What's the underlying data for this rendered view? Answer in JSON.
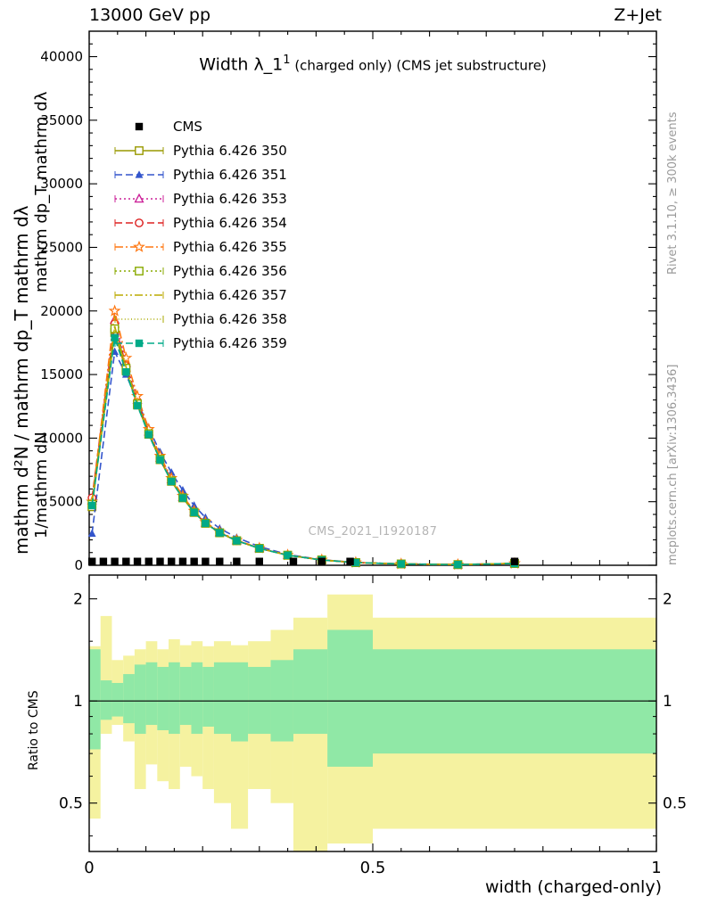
{
  "header": {
    "left": "13000 GeV pp",
    "right": "Z+Jet"
  },
  "side_labels": {
    "rivet": "Rivet 3.1.10, ≥ 300k events",
    "mcplots": "mcplots.cern.ch [arXiv:1306.3436]",
    "ylabel_parts": [
      "mathrm d²N / mathrm dp_T mathrm dλ",
      "mathrm dp_T mathrm dλ",
      "1/mathrm dN"
    ],
    "ratio_ylabel": "Ratio to CMS"
  },
  "title": {
    "main": "Width λ_1",
    "sup": "1",
    "rest": " (charged only) (CMS jet substructure)"
  },
  "watermark": "CMS_2021_I1920187",
  "xlabel": "width (charged-only)",
  "chart_data": {
    "type": "line",
    "title": "Width λ_1^1 (charged only) (CMS jet substructure)",
    "xlabel": "width (charged-only)",
    "x_range": [
      0,
      1
    ],
    "y_range": [
      0,
      42000
    ],
    "y_ticks": [
      0,
      5000,
      10000,
      15000,
      20000,
      25000,
      30000,
      35000,
      40000
    ],
    "x_ticks": [
      0,
      0.5,
      1
    ],
    "x": [
      0.005,
      0.045,
      0.065,
      0.085,
      0.105,
      0.125,
      0.145,
      0.165,
      0.185,
      0.205,
      0.23,
      0.26,
      0.3,
      0.35,
      0.41,
      0.47,
      0.55,
      0.65,
      0.75
    ],
    "cms": {
      "name": "CMS",
      "color": "#000000",
      "marker": "square-filled",
      "line": "none",
      "x": [
        0.005,
        0.025,
        0.045,
        0.065,
        0.085,
        0.105,
        0.125,
        0.145,
        0.165,
        0.185,
        0.205,
        0.23,
        0.26,
        0.3,
        0.36,
        0.41,
        0.46,
        0.75
      ],
      "values": [
        300,
        300,
        300,
        300,
        300,
        300,
        300,
        300,
        300,
        300,
        300,
        300,
        300,
        300,
        300,
        300,
        300,
        300
      ]
    },
    "series": [
      {
        "name": "Pythia 6.426 350",
        "color": "#999900",
        "marker": "square-open",
        "line": "solid",
        "values": [
          4600,
          18300,
          15300,
          12600,
          10300,
          8300,
          6600,
          5300,
          4150,
          3300,
          2550,
          1930,
          1330,
          790,
          415,
          212,
          106,
          53,
          145
        ]
      },
      {
        "name": "Pythia 6.426 351",
        "color": "#3355cc",
        "marker": "triangle-filled",
        "line": "dash",
        "values": [
          2500,
          16800,
          15000,
          12900,
          10800,
          8900,
          7300,
          5900,
          4700,
          3750,
          2900,
          2180,
          1470,
          850,
          435,
          222,
          111,
          58,
          135
        ]
      },
      {
        "name": "Pythia 6.426 353",
        "color": "#cc2299",
        "marker": "triangle-open",
        "line": "dot",
        "values": [
          5100,
          19300,
          15900,
          13000,
          10500,
          8450,
          6750,
          5350,
          4200,
          3340,
          2580,
          1950,
          1340,
          795,
          420,
          215,
          107,
          54,
          142
        ]
      },
      {
        "name": "Pythia 6.426 354",
        "color": "#dd2222",
        "marker": "circle-open",
        "line": "dash",
        "values": [
          5300,
          19000,
          15700,
          12900,
          10450,
          8400,
          6700,
          5320,
          4180,
          3320,
          2570,
          1940,
          1335,
          792,
          417,
          213,
          106,
          53,
          141
        ]
      },
      {
        "name": "Pythia 6.426 355",
        "color": "#ff7711",
        "marker": "star-open",
        "line": "dashdot",
        "values": [
          5000,
          20000,
          16300,
          13300,
          10700,
          8600,
          6850,
          5450,
          4270,
          3390,
          2620,
          1975,
          1355,
          805,
          425,
          218,
          109,
          55,
          144
        ]
      },
      {
        "name": "Pythia 6.426 356",
        "color": "#88aa00",
        "marker": "square-open",
        "line": "dot",
        "values": [
          4800,
          18600,
          15500,
          12700,
          10350,
          8350,
          6640,
          5310,
          4170,
          3310,
          2560,
          1935,
          1332,
          791,
          416,
          212,
          106,
          53,
          140
        ]
      },
      {
        "name": "Pythia 6.426 357",
        "color": "#bbaa00",
        "marker": "none",
        "line": "dashdotdot",
        "values": [
          4900,
          18800,
          15600,
          12800,
          10400,
          8370,
          6660,
          5320,
          4175,
          3315,
          2565,
          1938,
          1333,
          792,
          416,
          213,
          106,
          53,
          141
        ]
      },
      {
        "name": "Pythia 6.426 358",
        "color": "#aaaa00",
        "marker": "none",
        "line": "finedot",
        "values": [
          4950,
          18700,
          15550,
          12750,
          10380,
          8360,
          6650,
          5315,
          4172,
          3312,
          2562,
          1936,
          1332,
          791,
          416,
          212,
          106,
          53,
          140
        ]
      },
      {
        "name": "Pythia 6.426 359",
        "color": "#00aa88",
        "marker": "square-filled",
        "line": "dash",
        "values": [
          4700,
          17900,
          15200,
          12550,
          10280,
          8290,
          6590,
          5290,
          4155,
          3300,
          2552,
          1928,
          1328,
          788,
          414,
          211,
          105,
          52,
          138
        ]
      }
    ],
    "ratio": {
      "label": "Ratio to CMS",
      "scale": "log",
      "range": [
        0.36,
        2.35
      ],
      "ticks": [
        0.5,
        1,
        2
      ],
      "band_colors": {
        "outer": "#f5f2a0",
        "inner": "#90e8a6"
      },
      "bands": [
        [
          0.0,
          0.02,
          0.45,
          1.45,
          0.72,
          1.42
        ],
        [
          0.02,
          0.04,
          0.8,
          1.78,
          0.88,
          1.15
        ],
        [
          0.04,
          0.06,
          0.85,
          1.32,
          0.9,
          1.13
        ],
        [
          0.06,
          0.08,
          0.76,
          1.36,
          0.86,
          1.2
        ],
        [
          0.08,
          0.1,
          0.55,
          1.42,
          0.8,
          1.28
        ],
        [
          0.1,
          0.12,
          0.65,
          1.5,
          0.85,
          1.3
        ],
        [
          0.12,
          0.14,
          0.58,
          1.42,
          0.82,
          1.26
        ],
        [
          0.14,
          0.16,
          0.55,
          1.52,
          0.8,
          1.3
        ],
        [
          0.16,
          0.18,
          0.64,
          1.46,
          0.85,
          1.26
        ],
        [
          0.18,
          0.2,
          0.6,
          1.5,
          0.8,
          1.3
        ],
        [
          0.2,
          0.22,
          0.55,
          1.45,
          0.84,
          1.26
        ],
        [
          0.22,
          0.25,
          0.5,
          1.5,
          0.8,
          1.3
        ],
        [
          0.25,
          0.28,
          0.42,
          1.46,
          0.76,
          1.3
        ],
        [
          0.28,
          0.32,
          0.55,
          1.5,
          0.8,
          1.26
        ],
        [
          0.32,
          0.36,
          0.5,
          1.62,
          0.76,
          1.32
        ],
        [
          0.36,
          0.42,
          0.36,
          1.76,
          0.8,
          1.42
        ],
        [
          0.42,
          0.5,
          0.38,
          2.06,
          0.64,
          1.62
        ],
        [
          0.5,
          1.0,
          0.42,
          1.76,
          0.7,
          1.42
        ]
      ]
    }
  }
}
